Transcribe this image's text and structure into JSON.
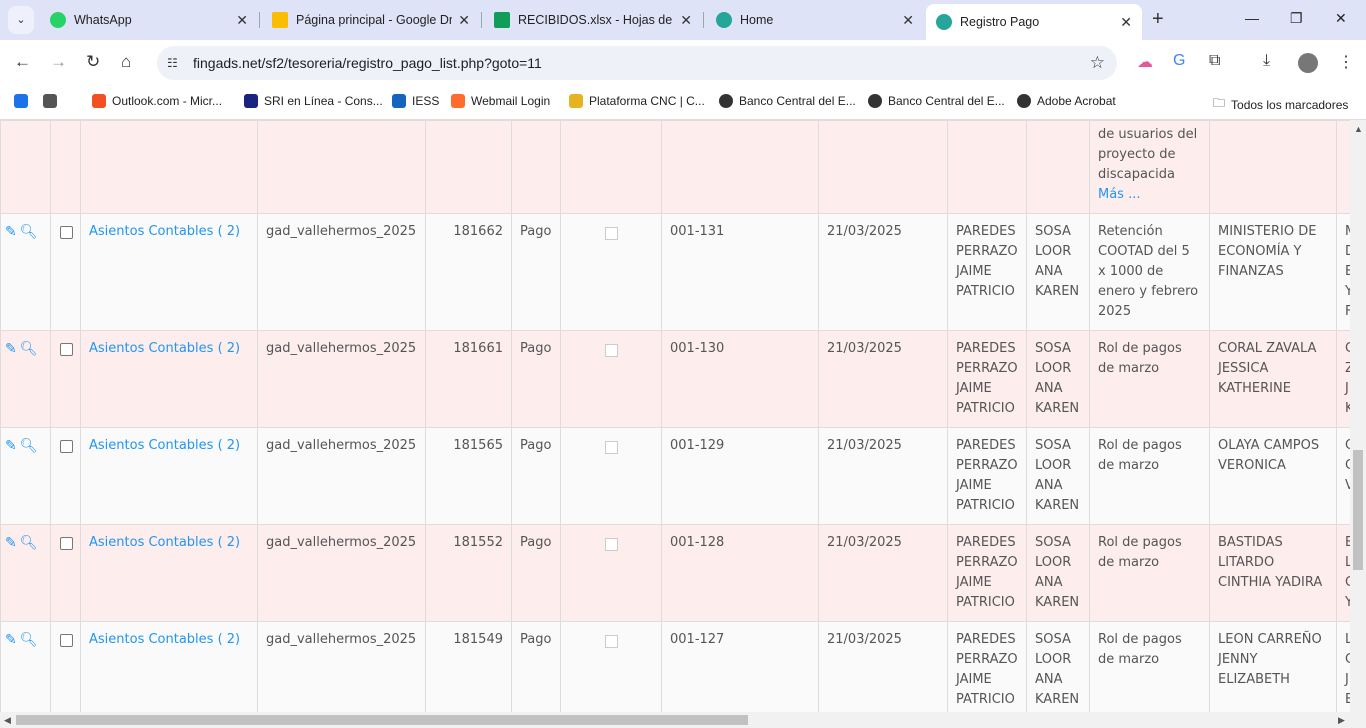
{
  "browser": {
    "tabs": [
      {
        "title": "WhatsApp",
        "color": "#25d366"
      },
      {
        "title": "Página principal - Google Drive",
        "color": "#fbbc04"
      },
      {
        "title": "RECIBIDOS.xlsx - Hojas de cálculo",
        "color": "#0f9d58"
      },
      {
        "title": "Home",
        "color": "#26a69a"
      },
      {
        "title": "Registro Pago",
        "color": "#26a69a"
      }
    ],
    "url": "fingads.net/sf2/tesoreria/registro_pago_list.php?goto=11",
    "bookmarks": [
      {
        "label": "Outlook.com - Micr...",
        "color": "#f25022"
      },
      {
        "label": "SRI en Línea - Cons...",
        "color": "#1a237e"
      },
      {
        "label": "IESS",
        "color": "#1565c0"
      },
      {
        "label": "Webmail Login",
        "color": "#ff6c2c"
      },
      {
        "label": "Plataforma CNC | C...",
        "color": "#e6b422"
      },
      {
        "label": "Banco Central del E...",
        "color": "#333333"
      },
      {
        "label": "Banco Central del E...",
        "color": "#333333"
      },
      {
        "label": "Adobe Acrobat",
        "color": "#333333"
      }
    ],
    "all_bookmarks": "Todos los marcadores"
  },
  "table": {
    "partial_row": {
      "description_lines": "de usuarios del proyecto de discapacida",
      "more_link": "Más ..."
    },
    "rows": [
      {
        "link": "Asientos Contables ( 2)",
        "db": "gad_vallehermos_2025",
        "id": "181662",
        "type": "Pago",
        "number": "001-131",
        "date": "21/03/2025",
        "user1": "PAREDES PERRAZO JAIME PATRICIO",
        "user2": "SOSA LOOR ANA KAREN",
        "description": "Retención COOTAD del 5 x 1000 de enero y febrero 2025",
        "beneficiary": "MINISTERIO DE ECONOMÍA Y FINANZAS"
      },
      {
        "link": "Asientos Contables ( 2)",
        "db": "gad_vallehermos_2025",
        "id": "181661",
        "type": "Pago",
        "number": "001-130",
        "date": "21/03/2025",
        "user1": "PAREDES PERRAZO JAIME PATRICIO",
        "user2": "SOSA LOOR ANA KAREN",
        "description": "Rol de pagos de marzo",
        "beneficiary": "CORAL ZAVALA JESSICA KATHERINE"
      },
      {
        "link": "Asientos Contables ( 2)",
        "db": "gad_vallehermos_2025",
        "id": "181565",
        "type": "Pago",
        "number": "001-129",
        "date": "21/03/2025",
        "user1": "PAREDES PERRAZO JAIME PATRICIO",
        "user2": "SOSA LOOR ANA KAREN",
        "description": "Rol de pagos de marzo",
        "beneficiary": "OLAYA CAMPOS VERONICA"
      },
      {
        "link": "Asientos Contables ( 2)",
        "db": "gad_vallehermos_2025",
        "id": "181552",
        "type": "Pago",
        "number": "001-128",
        "date": "21/03/2025",
        "user1": "PAREDES PERRAZO JAIME PATRICIO",
        "user2": "SOSA LOOR ANA KAREN",
        "description": "Rol de pagos de marzo",
        "beneficiary": "BASTIDAS LITARDO CINTHIA YADIRA"
      },
      {
        "link": "Asientos Contables ( 2)",
        "db": "gad_vallehermos_2025",
        "id": "181549",
        "type": "Pago",
        "number": "001-127",
        "date": "21/03/2025",
        "user1": "PAREDES PERRAZO JAIME PATRICIO",
        "user2": "SOSA LOOR ANA KAREN",
        "description": "Rol de pagos de marzo",
        "beneficiary": "LEON CARREÑO JENNY ELIZABETH"
      }
    ]
  },
  "colors": {
    "link": "#2196f3",
    "row_alt": "#fdeded"
  }
}
